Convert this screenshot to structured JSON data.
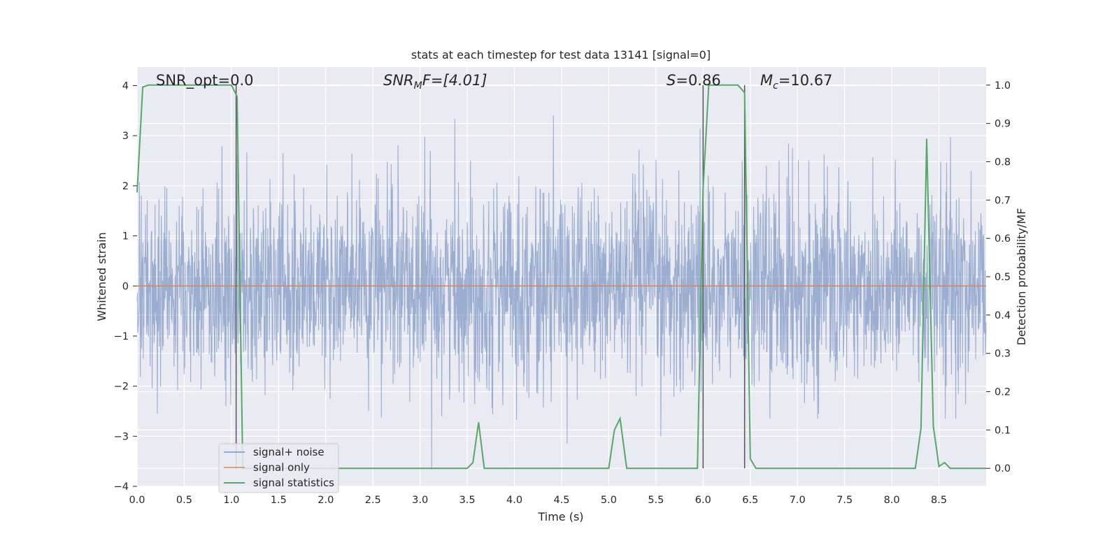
{
  "chart_data": {
    "type": "line",
    "title": "stats at each timestep for test data 13141 [signal=0]",
    "xlabel": "Time (s)",
    "ylabel": "Whitened strain",
    "ylabel_right": "Detection probability/MF",
    "xlim": [
      0,
      9.0
    ],
    "ylim": [
      -4.0,
      4.37
    ],
    "ylim_right": [
      -0.047,
      1.047
    ],
    "x_ticks": [
      "0.0",
      "0.5",
      "1.0",
      "1.5",
      "2.0",
      "2.5",
      "3.0",
      "3.5",
      "4.0",
      "4.5",
      "5.0",
      "5.5",
      "6.0",
      "6.5",
      "7.0",
      "7.5",
      "8.0",
      "8.5"
    ],
    "y_ticks": [
      "4",
      "3",
      "2",
      "1",
      "0",
      "−1",
      "−2",
      "−3",
      "−4"
    ],
    "y_ticks_right": [
      "1.0",
      "0.9",
      "0.8",
      "0.7",
      "0.6",
      "0.5",
      "0.4",
      "0.3",
      "0.2",
      "0.1",
      "0.0"
    ],
    "grid": true,
    "legend_position": "lower-left",
    "annotations": {
      "snr_opt": "SNR_opt=0.0",
      "snr_mf_sym": "SNR",
      "snr_mf_sub": "M",
      "snr_mf_rest": "F=[4.01]",
      "s_sym": "S",
      "s_rest": "=0.86",
      "mc_sym": "M",
      "mc_sub": "c",
      "mc_rest": "=10.67"
    },
    "vertical_lines_x": [
      1.05,
      6.0,
      6.44
    ],
    "series": [
      {
        "name": "signal+ noise",
        "color": "#4c72b0",
        "description_envelope": {
          "typical_band": [
            -1.35,
            1.35
          ],
          "upper_peaks": [
            3.5,
            3.35,
            3.25,
            3.7,
            3.85,
            3.25,
            3.6,
            3.0
          ],
          "lower_peaks": [
            -3.7,
            -3.6,
            -3.5,
            -3.6,
            -3.4
          ]
        }
      },
      {
        "name": "signal only",
        "color": "#dd8452",
        "x": [
          0,
          9.0
        ],
        "y": [
          0,
          0
        ]
      },
      {
        "name": "signal statistics",
        "color": "#55a868",
        "axis": "right",
        "x": [
          0.0,
          0.06,
          0.12,
          0.94,
          1.0,
          1.06,
          1.12,
          1.18,
          3.5,
          3.56,
          3.62,
          3.68,
          3.75,
          5.0,
          5.06,
          5.12,
          5.19,
          5.25,
          5.94,
          6.0,
          6.06,
          6.37,
          6.44,
          6.5,
          6.56,
          8.25,
          8.31,
          8.37,
          8.44,
          8.5,
          8.56,
          8.62,
          8.69,
          9.0
        ],
        "y": [
          0.72,
          0.995,
          1.0,
          1.0,
          1.0,
          0.97,
          0.0,
          0.0,
          0.0,
          0.015,
          0.12,
          0.0,
          0.0,
          0.0,
          0.1,
          0.13,
          0.0,
          0.0,
          0.0,
          0.73,
          1.0,
          1.0,
          0.98,
          0.025,
          0.0,
          0.0,
          0.105,
          0.86,
          0.11,
          0.005,
          0.015,
          0.0,
          0.0,
          0.0
        ]
      }
    ]
  }
}
